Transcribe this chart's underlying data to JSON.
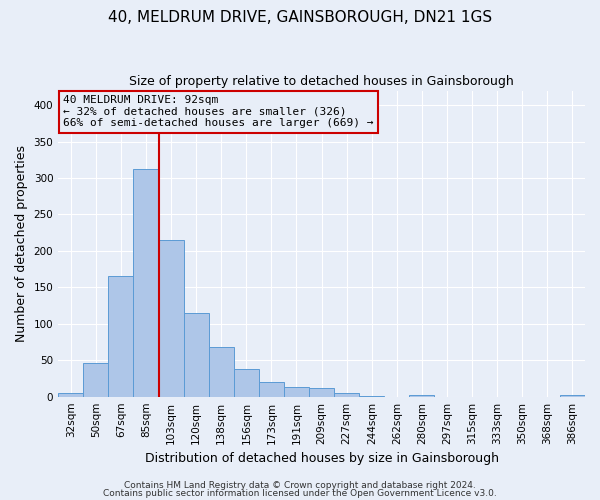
{
  "title": "40, MELDRUM DRIVE, GAINSBOROUGH, DN21 1GS",
  "subtitle": "Size of property relative to detached houses in Gainsborough",
  "xlabel": "Distribution of detached houses by size in Gainsborough",
  "ylabel": "Number of detached properties",
  "bar_labels": [
    "32sqm",
    "50sqm",
    "67sqm",
    "85sqm",
    "103sqm",
    "120sqm",
    "138sqm",
    "156sqm",
    "173sqm",
    "191sqm",
    "209sqm",
    "227sqm",
    "244sqm",
    "262sqm",
    "280sqm",
    "297sqm",
    "315sqm",
    "333sqm",
    "350sqm",
    "368sqm",
    "386sqm"
  ],
  "bar_values": [
    5,
    46,
    165,
    312,
    215,
    115,
    68,
    38,
    20,
    13,
    12,
    5,
    1,
    0,
    2,
    0,
    0,
    0,
    0,
    0,
    2
  ],
  "bar_color": "#aec6e8",
  "bar_edge_color": "#5b9bd5",
  "vline_x_index": 3,
  "vline_color": "#cc0000",
  "ylim": [
    0,
    420
  ],
  "yticks": [
    0,
    50,
    100,
    150,
    200,
    250,
    300,
    350,
    400
  ],
  "annotation_title": "40 MELDRUM DRIVE: 92sqm",
  "annotation_line1": "← 32% of detached houses are smaller (326)",
  "annotation_line2": "66% of semi-detached houses are larger (669) →",
  "annotation_box_color": "#cc0000",
  "footer1": "Contains HM Land Registry data © Crown copyright and database right 2024.",
  "footer2": "Contains public sector information licensed under the Open Government Licence v3.0.",
  "bg_color": "#e8eef8",
  "grid_color": "#ffffff",
  "title_fontsize": 11,
  "subtitle_fontsize": 9,
  "axis_label_fontsize": 9,
  "tick_fontsize": 7.5,
  "footer_fontsize": 6.5,
  "annotation_fontsize": 8
}
